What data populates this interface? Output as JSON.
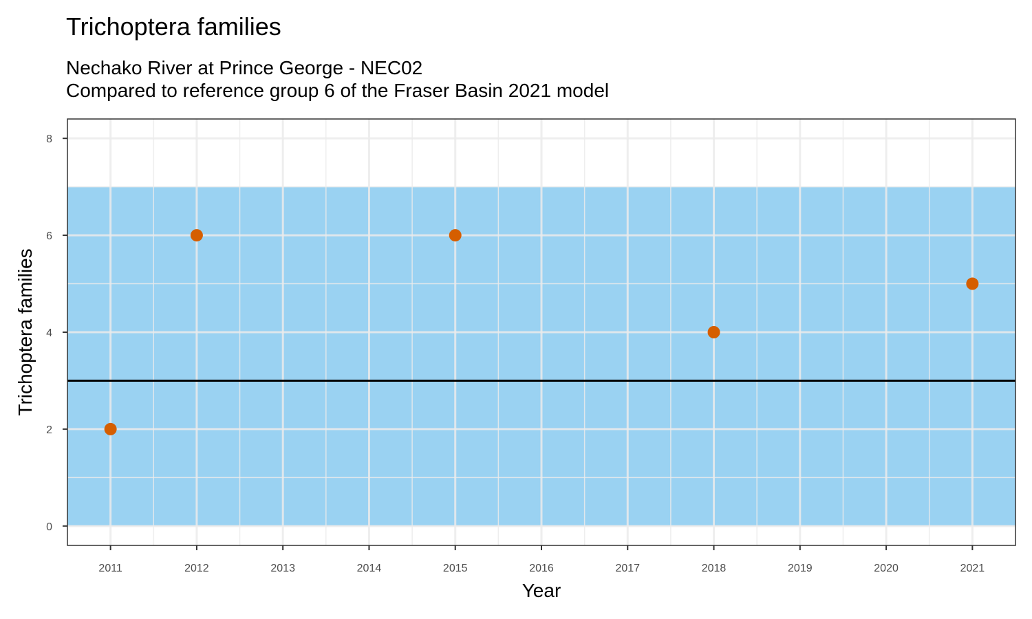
{
  "chart_data": {
    "type": "scatter",
    "title": "Trichoptera families",
    "subtitle_lines": [
      "Nechako River at Prince George - NEC02",
      "Compared to reference group 6 of the Fraser Basin 2021 model"
    ],
    "xlabel": "Year",
    "ylabel": "Trichoptera families",
    "x_ticks": [
      2011,
      2012,
      2013,
      2014,
      2015,
      2016,
      2017,
      2018,
      2019,
      2020,
      2021
    ],
    "y_ticks": [
      0,
      2,
      4,
      6,
      8
    ],
    "xlim": [
      2010.5,
      2021.5
    ],
    "ylim": [
      -0.4,
      8.4
    ],
    "grid": true,
    "reference_band": {
      "ymin": 0,
      "ymax": 7,
      "color": "#56B4E9"
    },
    "reference_line": {
      "y": 3,
      "color": "#000000"
    },
    "points": [
      {
        "x": 2011,
        "y": 2
      },
      {
        "x": 2012,
        "y": 6
      },
      {
        "x": 2015,
        "y": 6
      },
      {
        "x": 2018,
        "y": 4
      },
      {
        "x": 2021,
        "y": 5
      }
    ],
    "point_color": "#D55E00"
  }
}
